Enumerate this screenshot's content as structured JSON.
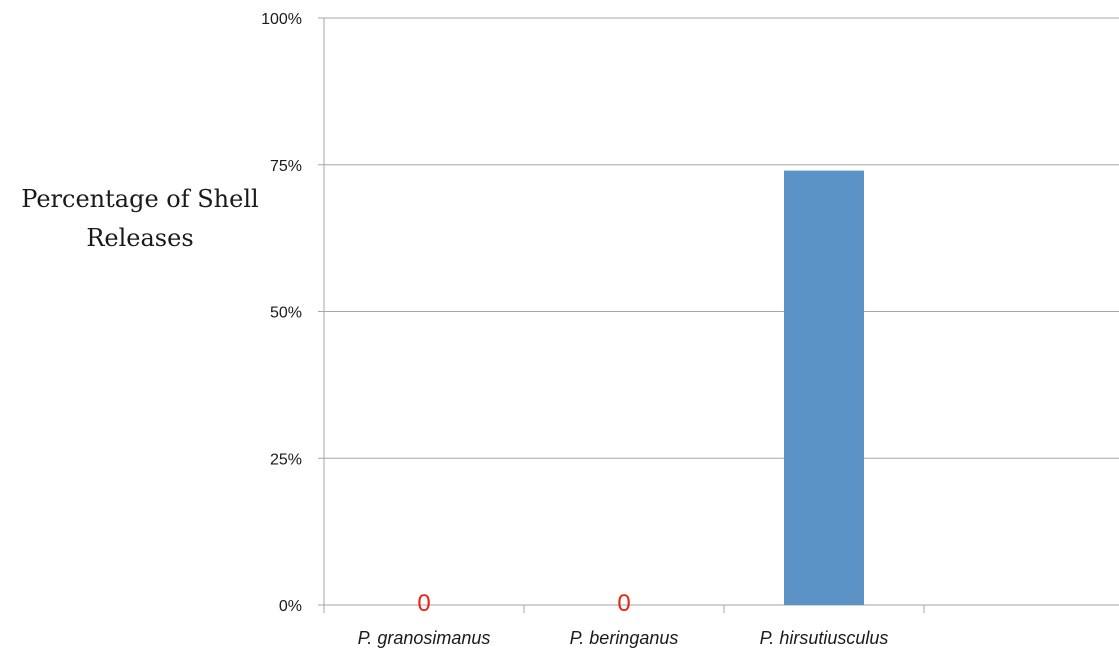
{
  "chart_data": {
    "type": "bar",
    "categories": [
      "P. granosimanus",
      "P. beringanus",
      "P. hirsutiusculus",
      ""
    ],
    "values": [
      0,
      0,
      74,
      null
    ],
    "ylabel_lines": [
      "Percentage of Shell",
      "Releases"
    ],
    "ylim": [
      0,
      100
    ],
    "yticks": [
      0,
      25,
      50,
      75,
      100
    ],
    "ytick_labels": [
      "0%",
      "25%",
      "50%",
      "75%",
      "100%"
    ],
    "zero_labels": [
      "0",
      "0"
    ],
    "grid": true,
    "colors": {
      "bar": "#5b93c6",
      "zero_label": "#ee2211",
      "grid": "#a6a6a6"
    }
  }
}
